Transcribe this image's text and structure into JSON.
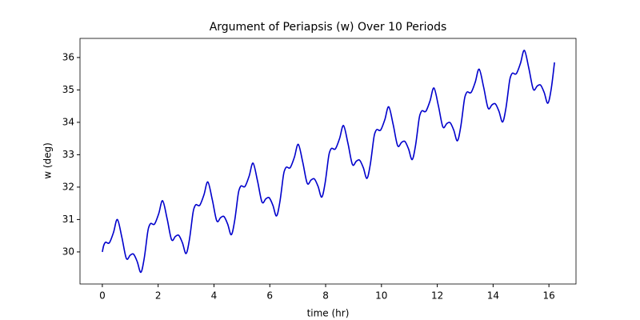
{
  "chart_data": {
    "type": "line",
    "title": "Argument of Periapsis (w) Over 10 Periods",
    "xlabel": "time (hr)",
    "ylabel": "w (deg)",
    "x": [
      0,
      0.05,
      0.12,
      0.25,
      0.4,
      0.54,
      0.7,
      0.86,
      1.0,
      1.12,
      1.25,
      1.38,
      1.5,
      1.62,
      1.67,
      1.74,
      1.87,
      2.02,
      2.16,
      2.32,
      2.48,
      2.62,
      2.74,
      2.87,
      3.0,
      3.12,
      3.24,
      3.29,
      3.36,
      3.49,
      3.64,
      3.78,
      3.94,
      4.1,
      4.24,
      4.36,
      4.49,
      4.62,
      4.74,
      4.86,
      4.91,
      4.98,
      5.11,
      5.26,
      5.4,
      5.56,
      5.72,
      5.86,
      5.98,
      6.11,
      6.24,
      6.36,
      6.48,
      6.53,
      6.6,
      6.73,
      6.88,
      7.02,
      7.18,
      7.34,
      7.48,
      7.6,
      7.73,
      7.86,
      7.98,
      8.1,
      8.15,
      8.22,
      8.35,
      8.5,
      8.64,
      8.8,
      8.96,
      9.1,
      9.22,
      9.35,
      9.48,
      9.6,
      9.72,
      9.77,
      9.84,
      9.97,
      10.12,
      10.26,
      10.42,
      10.58,
      10.72,
      10.84,
      10.97,
      11.1,
      11.22,
      11.34,
      11.39,
      11.46,
      11.59,
      11.74,
      11.88,
      12.04,
      12.2,
      12.34,
      12.46,
      12.59,
      12.72,
      12.84,
      12.96,
      13.01,
      13.08,
      13.21,
      13.36,
      13.5,
      13.66,
      13.82,
      13.96,
      14.08,
      14.21,
      14.34,
      14.46,
      14.58,
      14.63,
      14.7,
      14.83,
      14.98,
      15.12,
      15.28,
      15.44,
      15.58,
      15.7,
      15.83,
      15.96,
      16.08,
      16.2
    ],
    "series": [
      {
        "name": "w",
        "color": "#0000cc",
        "values": [
          30,
          30.2,
          30.3,
          30.28,
          30.6,
          31.0,
          30.45,
          29.8,
          29.9,
          29.93,
          29.7,
          29.37,
          29.8,
          30.58,
          30.78,
          30.88,
          30.86,
          31.18,
          31.58,
          31.03,
          30.38,
          30.48,
          30.51,
          30.28,
          29.95,
          30.38,
          31.16,
          31.36,
          31.46,
          31.44,
          31.76,
          32.16,
          31.61,
          30.96,
          31.06,
          31.09,
          30.86,
          30.53,
          30.96,
          31.74,
          31.94,
          32.04,
          32.02,
          32.34,
          32.74,
          32.19,
          31.54,
          31.64,
          31.67,
          31.44,
          31.11,
          31.54,
          32.32,
          32.52,
          32.62,
          32.6,
          32.92,
          33.32,
          32.77,
          32.12,
          32.22,
          32.25,
          32.02,
          31.69,
          32.12,
          32.9,
          33.1,
          33.2,
          33.18,
          33.5,
          33.9,
          33.35,
          32.7,
          32.8,
          32.83,
          32.6,
          32.27,
          32.7,
          33.48,
          33.68,
          33.78,
          33.76,
          34.08,
          34.48,
          33.93,
          33.28,
          33.38,
          33.41,
          33.18,
          32.85,
          33.28,
          34.06,
          34.26,
          34.36,
          34.34,
          34.66,
          35.06,
          34.51,
          33.86,
          33.96,
          33.99,
          33.76,
          33.43,
          33.86,
          34.64,
          34.84,
          34.94,
          34.92,
          35.24,
          35.64,
          35.09,
          34.44,
          34.54,
          34.57,
          34.34,
          34.01,
          34.44,
          35.22,
          35.42,
          35.52,
          35.5,
          35.82,
          36.22,
          35.67,
          35.02,
          35.12,
          35.15,
          34.92,
          34.59,
          35.02,
          35.85
        ]
      }
    ],
    "xlim": [
      -0.8,
      16.97
    ],
    "ylim": [
      29.01,
      36.59
    ],
    "xticks": [
      0,
      2,
      4,
      6,
      8,
      10,
      12,
      14,
      16
    ],
    "yticks": [
      30,
      31,
      32,
      33,
      34,
      35,
      36
    ]
  }
}
